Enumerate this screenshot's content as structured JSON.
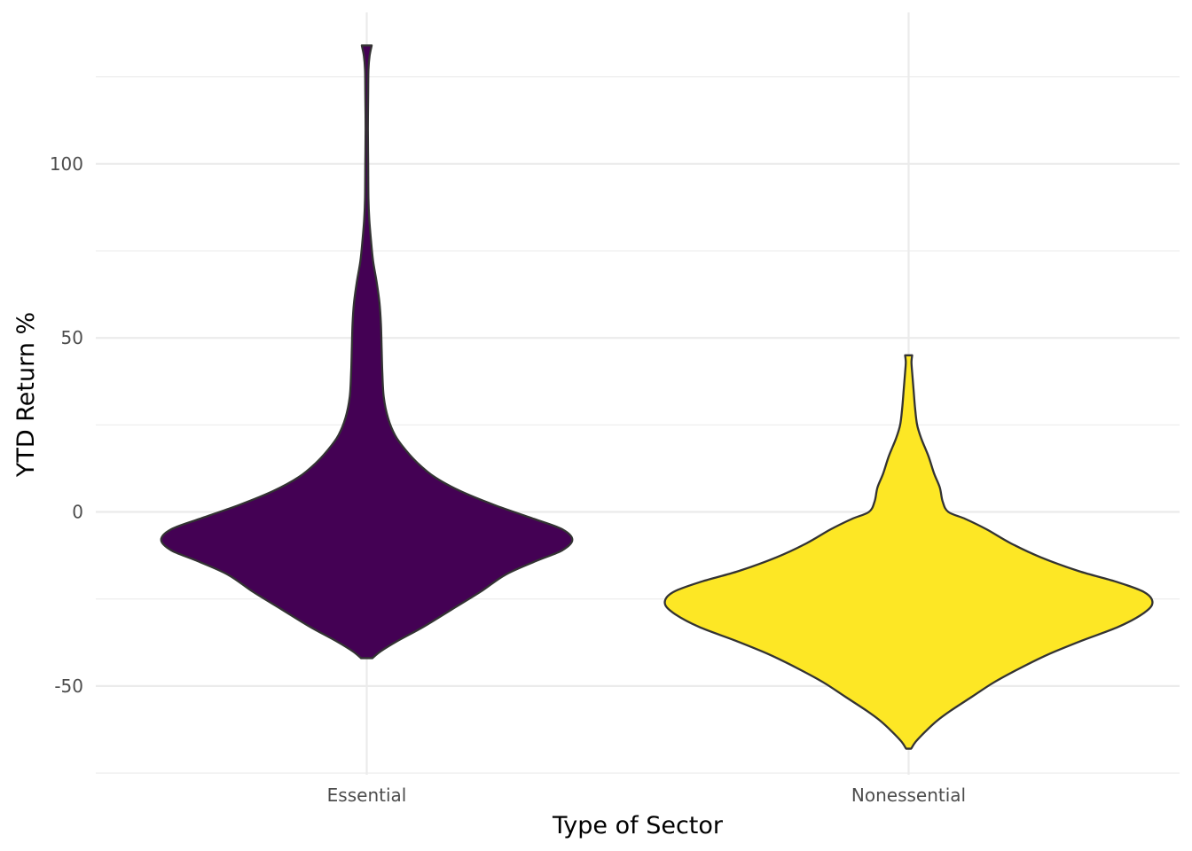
{
  "chart_data": {
    "type": "violin",
    "title": "",
    "xlabel": "Type of Sector",
    "ylabel": "YTD Return %",
    "ylim": [
      -75.5,
      143.5
    ],
    "y_ticks": [
      -50,
      0,
      50,
      100
    ],
    "y_tick_labels": [
      "-50",
      "0",
      "50",
      "100"
    ],
    "y_minor_ticks": [
      -75,
      -25,
      25,
      75,
      125
    ],
    "grid": true,
    "legend": "none",
    "categories": [
      "Essential",
      "Nonessential"
    ],
    "series": [
      {
        "category": "Essential",
        "color": "#440154",
        "min": -42,
        "max": 134,
        "density_profile": [
          [
            -42,
            0.04
          ],
          [
            -40,
            0.1
          ],
          [
            -37,
            0.22
          ],
          [
            -33,
            0.4
          ],
          [
            -28,
            0.6
          ],
          [
            -23,
            0.8
          ],
          [
            -18,
            0.98
          ],
          [
            -14,
            1.2
          ],
          [
            -11,
            1.38
          ],
          [
            -8,
            1.45
          ],
          [
            -5,
            1.38
          ],
          [
            -2,
            1.18
          ],
          [
            2,
            0.9
          ],
          [
            6,
            0.66
          ],
          [
            10,
            0.48
          ],
          [
            14,
            0.36
          ],
          [
            18,
            0.27
          ],
          [
            22,
            0.2
          ],
          [
            27,
            0.15
          ],
          [
            33,
            0.12
          ],
          [
            40,
            0.11
          ],
          [
            47,
            0.105
          ],
          [
            54,
            0.1
          ],
          [
            60,
            0.09
          ],
          [
            66,
            0.07
          ],
          [
            72,
            0.045
          ],
          [
            78,
            0.03
          ],
          [
            84,
            0.018
          ],
          [
            90,
            0.012
          ],
          [
            100,
            0.01
          ],
          [
            110,
            0.008
          ],
          [
            120,
            0.01
          ],
          [
            127,
            0.012
          ],
          [
            131,
            0.02
          ],
          [
            134,
            0.035
          ]
        ]
      },
      {
        "category": "Nonessential",
        "color": "#fde725",
        "min": -68,
        "max": 45,
        "density_profile": [
          [
            -68,
            0.018
          ],
          [
            -66,
            0.05
          ],
          [
            -63,
            0.12
          ],
          [
            -60,
            0.2
          ],
          [
            -57,
            0.3
          ],
          [
            -53,
            0.45
          ],
          [
            -49,
            0.6
          ],
          [
            -45,
            0.78
          ],
          [
            -41,
            0.98
          ],
          [
            -37,
            1.22
          ],
          [
            -33,
            1.48
          ],
          [
            -29,
            1.66
          ],
          [
            -26,
            1.72
          ],
          [
            -23,
            1.66
          ],
          [
            -20,
            1.46
          ],
          [
            -17,
            1.2
          ],
          [
            -13,
            0.93
          ],
          [
            -9,
            0.72
          ],
          [
            -5,
            0.55
          ],
          [
            -2,
            0.4
          ],
          [
            0,
            0.28
          ],
          [
            3,
            0.24
          ],
          [
            7,
            0.22
          ],
          [
            11,
            0.18
          ],
          [
            16,
            0.14
          ],
          [
            21,
            0.09
          ],
          [
            25,
            0.06
          ],
          [
            30,
            0.045
          ],
          [
            35,
            0.035
          ],
          [
            40,
            0.025
          ],
          [
            43,
            0.02
          ],
          [
            45,
            0.025
          ]
        ]
      }
    ]
  }
}
